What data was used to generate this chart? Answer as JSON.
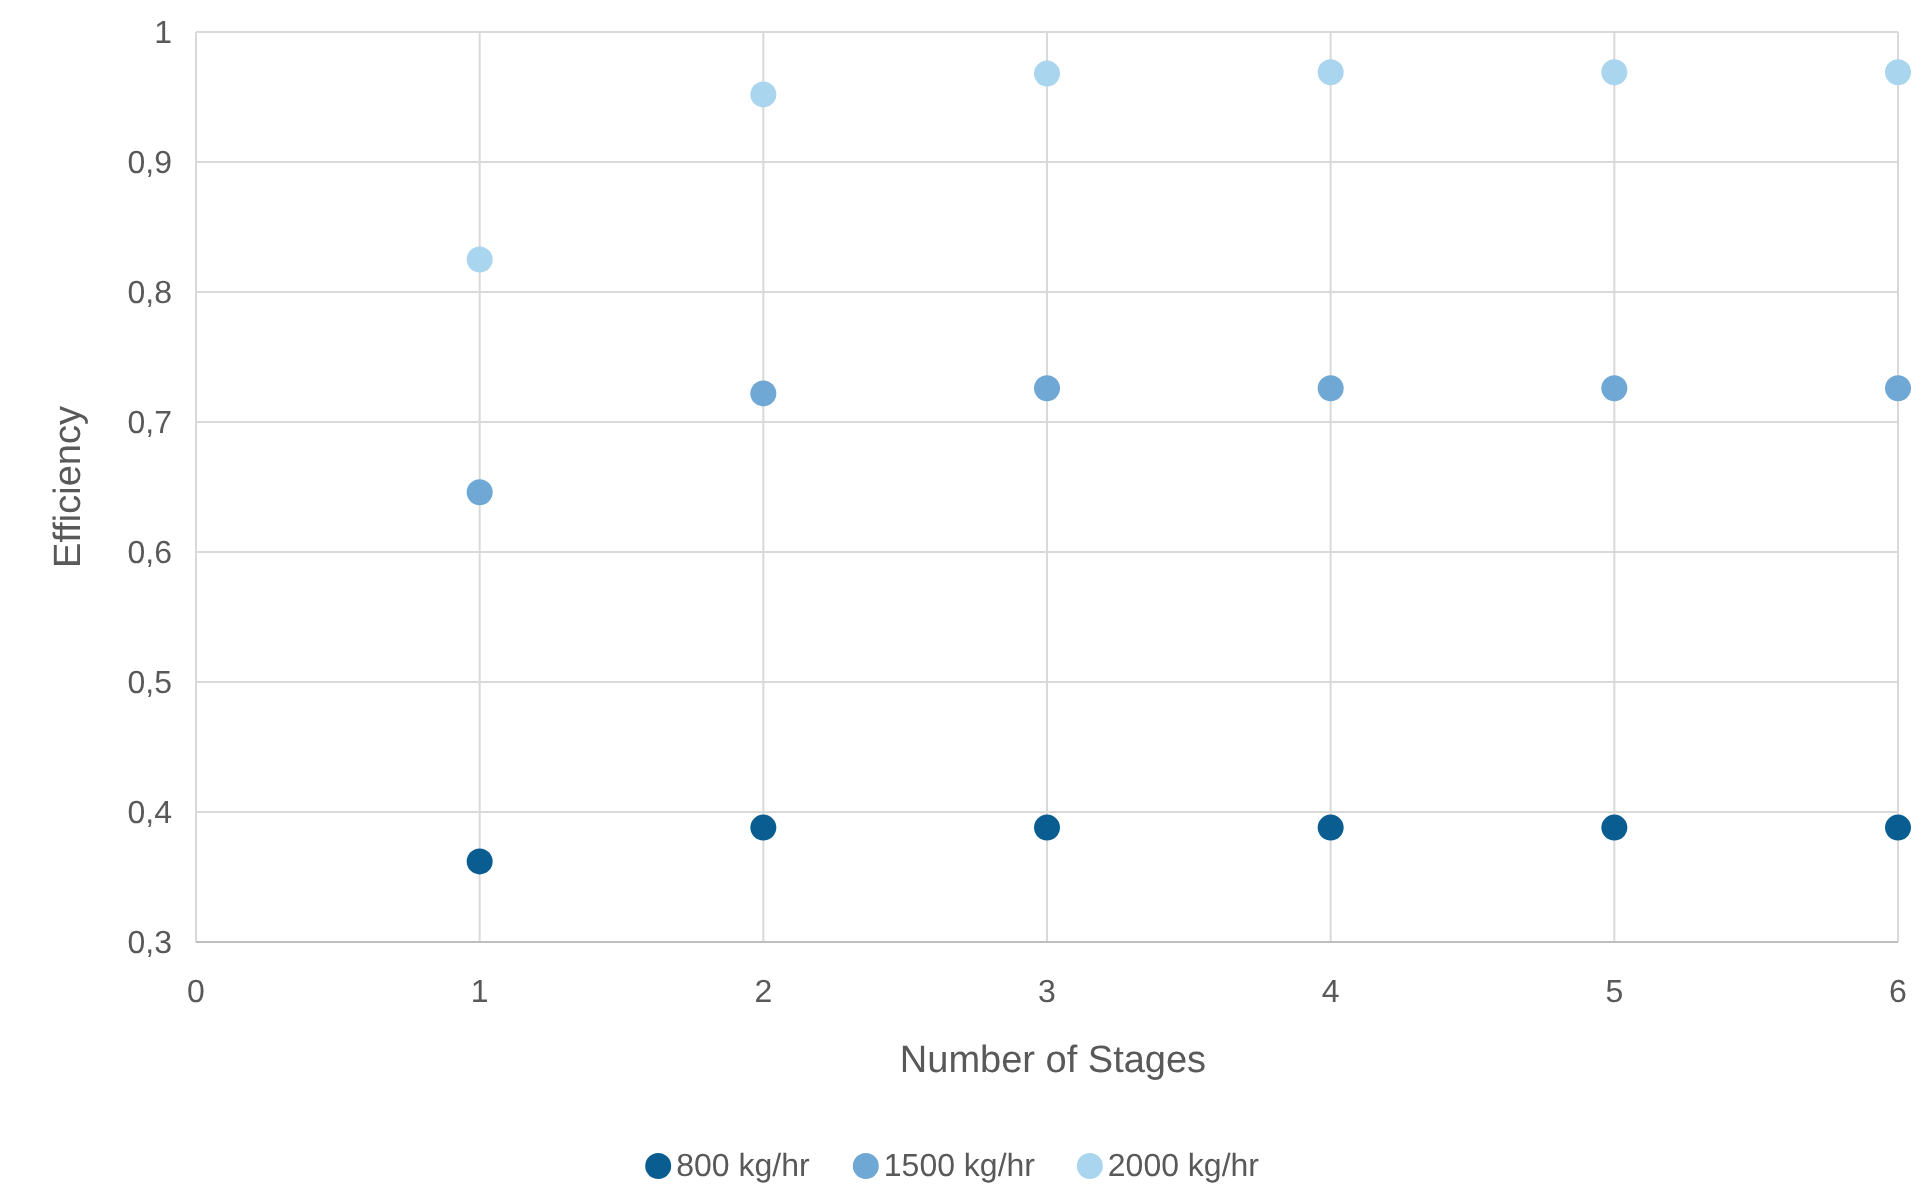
{
  "chart_data": {
    "type": "scatter",
    "xlabel": "Number of Stages",
    "ylabel": "Efficiency",
    "x": [
      1,
      2,
      3,
      4,
      5,
      6
    ],
    "series": [
      {
        "name": "800 kg/hr",
        "color": "#0a5d91",
        "values": [
          0.362,
          0.388,
          0.388,
          0.388,
          0.388,
          0.388
        ]
      },
      {
        "name": "1500 kg/hr",
        "color": "#6fa8d5",
        "values": [
          0.646,
          0.722,
          0.726,
          0.726,
          0.726,
          0.726
        ]
      },
      {
        "name": "2000 kg/hr",
        "color": "#a9d5ee",
        "values": [
          0.825,
          0.952,
          0.968,
          0.969,
          0.969,
          0.969
        ]
      }
    ],
    "xlim": [
      0,
      6
    ],
    "xticks": [
      0,
      1,
      2,
      3,
      4,
      5,
      6
    ],
    "ylim": [
      0.3,
      1
    ],
    "yticks": [
      {
        "value": 0.3,
        "label": "0,3"
      },
      {
        "value": 0.4,
        "label": "0,4"
      },
      {
        "value": 0.5,
        "label": "0,5"
      },
      {
        "value": 0.6,
        "label": "0,6"
      },
      {
        "value": 0.7,
        "label": "0,7"
      },
      {
        "value": 0.8,
        "label": "0,8"
      },
      {
        "value": 0.9,
        "label": "0,9"
      },
      {
        "value": 1,
        "label": "1"
      }
    ],
    "grid": true,
    "legend": "bottom",
    "marker": "circle"
  }
}
